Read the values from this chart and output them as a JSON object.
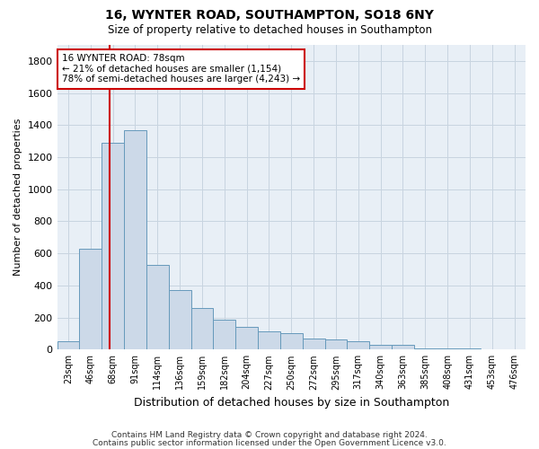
{
  "title1": "16, WYNTER ROAD, SOUTHAMPTON, SO18 6NY",
  "title2": "Size of property relative to detached houses in Southampton",
  "xlabel": "Distribution of detached houses by size in Southampton",
  "ylabel": "Number of detached properties",
  "categories": [
    "23sqm",
    "46sqm",
    "68sqm",
    "91sqm",
    "114sqm",
    "136sqm",
    "159sqm",
    "182sqm",
    "204sqm",
    "227sqm",
    "250sqm",
    "272sqm",
    "295sqm",
    "317sqm",
    "340sqm",
    "363sqm",
    "385sqm",
    "408sqm",
    "431sqm",
    "453sqm",
    "476sqm"
  ],
  "values": [
    50,
    630,
    1290,
    1370,
    530,
    370,
    260,
    185,
    140,
    115,
    105,
    70,
    65,
    50,
    30,
    30,
    10,
    8,
    5,
    4,
    3
  ],
  "bar_color": "#ccd9e8",
  "bar_edge_color": "#6699bb",
  "grid_color": "#c8d4e0",
  "background_color": "#e8eff6",
  "vline_x_bin": 1.85,
  "vline_color": "#cc0000",
  "annotation_text": "16 WYNTER ROAD: 78sqm\n← 21% of detached houses are smaller (1,154)\n78% of semi-detached houses are larger (4,243) →",
  "annotation_box_color": "#cc0000",
  "ylim": [
    0,
    1900
  ],
  "yticks": [
    0,
    200,
    400,
    600,
    800,
    1000,
    1200,
    1400,
    1600,
    1800
  ],
  "footnote1": "Contains HM Land Registry data © Crown copyright and database right 2024.",
  "footnote2": "Contains public sector information licensed under the Open Government Licence v3.0."
}
